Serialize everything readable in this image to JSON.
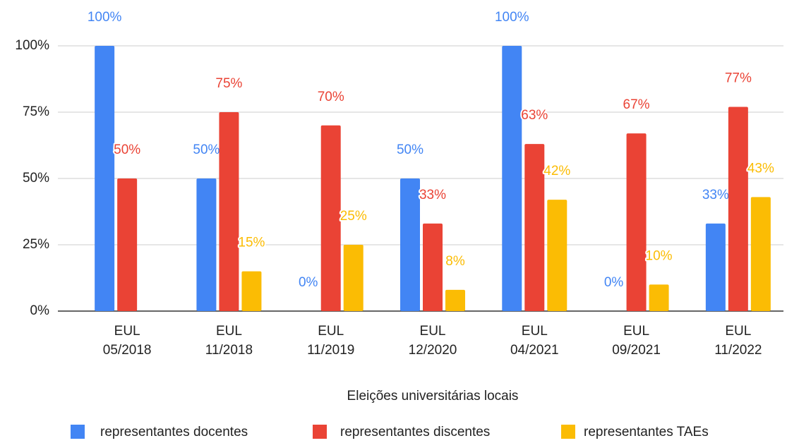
{
  "chart_data": {
    "type": "bar",
    "x_label": "Eleições universitárias locais",
    "categories": [
      "EUL 05/2018",
      "EUL 11/2018",
      "EUL 11/2019",
      "EUL 12/2020",
      "EUL 04/2021",
      "EUL 09/2021",
      "EUL 11/2022"
    ],
    "series": [
      {
        "name": "representantes docentes",
        "color": "#4285f4",
        "values": [
          100,
          50,
          0,
          50,
          100,
          0,
          33
        ],
        "value_labels": [
          "100%",
          "50%",
          "0%",
          "50%",
          "100%",
          "0%",
          "33%"
        ]
      },
      {
        "name": "representantes discentes",
        "color": "#ea4335",
        "values": [
          50,
          75,
          70,
          33,
          63,
          67,
          77
        ],
        "value_labels": [
          "50%",
          "75%",
          "70%",
          "33%",
          "63%",
          "67%",
          "77%"
        ]
      },
      {
        "name": "representantes TAEs",
        "color": "#fbbc04",
        "values": [
          null,
          15,
          25,
          8,
          42,
          10,
          43
        ],
        "value_labels": [
          null,
          "15%",
          "25%",
          "8%",
          "42%",
          "10%",
          "43%"
        ]
      }
    ],
    "ylim": [
      0,
      100
    ],
    "yticks": [
      {
        "value": 0,
        "label": "0%"
      },
      {
        "value": 25,
        "label": "25%"
      },
      {
        "value": 50,
        "label": "50%"
      },
      {
        "value": 75,
        "label": "75%"
      },
      {
        "value": 100,
        "label": "100%"
      }
    ],
    "grid": true,
    "legend": "bottom"
  }
}
